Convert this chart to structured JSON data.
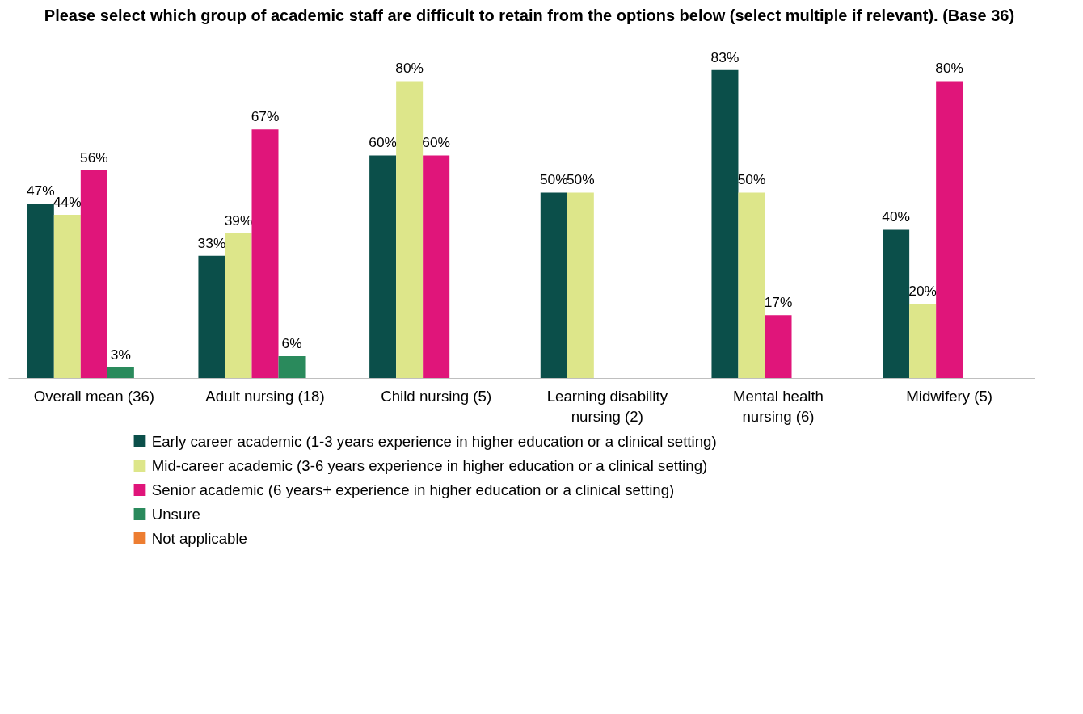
{
  "chart_data": {
    "type": "bar",
    "title": "Please select which group of academic staff are difficult to retain from the options below (select multiple if relevant). (Base 36)",
    "categories": [
      "Overall mean (36)",
      "Adult nursing (18)",
      "Child nursing (5)",
      "Learning disability nursing (2)",
      "Mental health nursing (6)",
      "Midwifery (5)"
    ],
    "grid": false,
    "legend": "bottom",
    "tick_labels": "x",
    "series": [
      {
        "name": "Early career academic (1-3 years experience in higher education or a clinical setting)",
        "color": "#0b4f4a",
        "values": [
          47,
          33,
          60,
          50,
          83,
          40
        ],
        "value_labels": [
          "47%",
          "33%",
          "60%",
          "50%",
          "83%",
          "40%"
        ]
      },
      {
        "name": "Mid-career academic  (3-6 years experience in higher education or a clinical setting)",
        "color": "#dde68a",
        "values": [
          44,
          39,
          80,
          50,
          50,
          20
        ],
        "value_labels": [
          "44%",
          "39%",
          "80%",
          "50%",
          "50%",
          "20%"
        ]
      },
      {
        "name": "Senior academic (6 years+ experience in higher education or a clinical setting)",
        "color": "#e0157a",
        "values": [
          56,
          67,
          60,
          null,
          17,
          80
        ],
        "value_labels": [
          "56%",
          "67%",
          "60%",
          null,
          "17%",
          "80%"
        ]
      },
      {
        "name": "Unsure",
        "color": "#2a8a5c",
        "values": [
          3,
          6,
          null,
          null,
          null,
          null
        ],
        "value_labels": [
          "3%",
          "6%",
          null,
          null,
          null,
          null
        ]
      },
      {
        "name": "Not applicable",
        "color": "#ed7d31",
        "values": [
          null,
          null,
          null,
          null,
          null,
          null
        ],
        "value_labels": [
          null,
          null,
          null,
          null,
          null,
          null
        ]
      }
    ]
  }
}
